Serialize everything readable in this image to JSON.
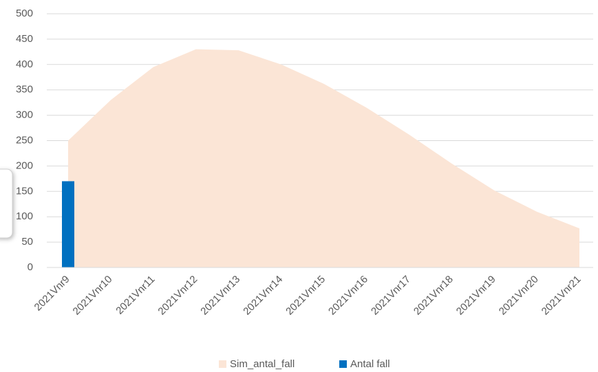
{
  "chart_data": {
    "type": "combo",
    "categories": [
      "2021Vnr9",
      "2021Vnr10",
      "2021Vnr11",
      "2021Vnr12",
      "2021Vnr13",
      "2021Vnr14",
      "2021Vnr15",
      "2021Vnr16",
      "2021Vnr17",
      "2021Vnr18",
      "2021Vnr19",
      "2021Vnr20",
      "2021Vnr21"
    ],
    "series": [
      {
        "name": "Sim_antal_fall",
        "type": "area",
        "color": "#fbe5d6",
        "values": [
          250,
          330,
          395,
          430,
          428,
          400,
          362,
          315,
          262,
          205,
          152,
          110,
          77
        ]
      },
      {
        "name": "Antal fall",
        "type": "bar",
        "color": "#0070c0",
        "values": [
          170,
          null,
          null,
          null,
          null,
          null,
          null,
          null,
          null,
          null,
          null,
          null,
          null
        ]
      }
    ],
    "ylim": [
      0,
      500
    ],
    "yticks": [
      0,
      50,
      100,
      150,
      200,
      250,
      300,
      350,
      400,
      450,
      500
    ],
    "grid": true,
    "legend": "bottom"
  }
}
